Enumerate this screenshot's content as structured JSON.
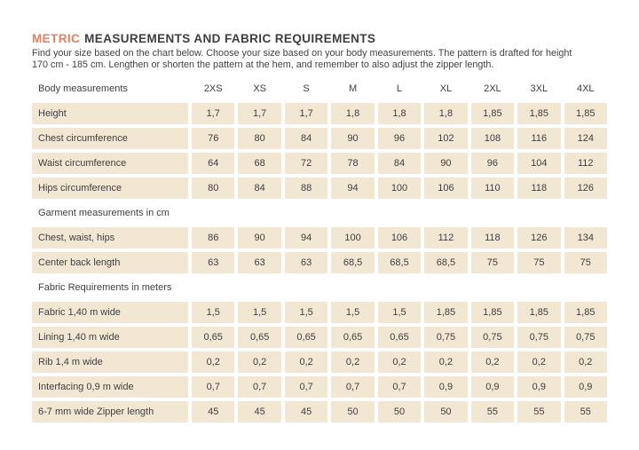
{
  "header": {
    "title_highlight": "METRIC",
    "title_rest": "MEASUREMENTS AND FABRIC REQUIREMENTS",
    "intro_line1": "Find your size based on the chart below. Choose your size based on your body measurements. The pattern is drafted for height",
    "intro_line2": "170 cm - 185 cm.  Lengthen or shorten the pattern at the hem, and remember to also adjust the zipper length."
  },
  "colors": {
    "accent": "#e5805a",
    "row_background": "#f2e7d3",
    "text": "#3c3c3c"
  },
  "table": {
    "header_label": "Body measurements",
    "sizes": [
      "2XS",
      "XS",
      "S",
      "M",
      "L",
      "XL",
      "2XL",
      "3XL",
      "4XL"
    ],
    "sections": [
      {
        "title": "",
        "rows": [
          {
            "label": "Height",
            "values": [
              "1,7",
              "1,7",
              "1,7",
              "1,8",
              "1,8",
              "1,8",
              "1,85",
              "1,85",
              "1,85"
            ]
          },
          {
            "label": "Chest circumference",
            "values": [
              "76",
              "80",
              "84",
              "90",
              "96",
              "102",
              "108",
              "116",
              "124"
            ]
          },
          {
            "label": "Waist circumference",
            "values": [
              "64",
              "68",
              "72",
              "78",
              "84",
              "90",
              "96",
              "104",
              "112"
            ]
          },
          {
            "label": "Hips circumference",
            "values": [
              "80",
              "84",
              "88",
              "94",
              "100",
              "106",
              "110",
              "118",
              "126"
            ]
          }
        ]
      },
      {
        "title": "Garment measurements in cm",
        "rows": [
          {
            "label": "Chest, waist, hips",
            "values": [
              "86",
              "90",
              "94",
              "100",
              "106",
              "112",
              "118",
              "126",
              "134"
            ]
          },
          {
            "label": "Center back length",
            "values": [
              "63",
              "63",
              "63",
              "68,5",
              "68,5",
              "68,5",
              "75",
              "75",
              "75"
            ]
          }
        ]
      },
      {
        "title": "Fabric Requirements in meters",
        "rows": [
          {
            "label": "Fabric 1,40 m wide",
            "values": [
              "1,5",
              "1,5",
              "1,5",
              "1,5",
              "1,5",
              "1,85",
              "1,85",
              "1,85",
              "1,85"
            ]
          },
          {
            "label": "Lining 1,40 m wide",
            "values": [
              "0,65",
              "0,65",
              "0,65",
              "0,65",
              "0,65",
              "0,75",
              "0,75",
              "0,75",
              "0,75"
            ]
          },
          {
            "label": "Rib 1,4 m wide",
            "values": [
              "0,2",
              "0,2",
              "0,2",
              "0,2",
              "0,2",
              "0,2",
              "0,2",
              "0,2",
              "0,2"
            ]
          },
          {
            "label": "Interfacing 0,9 m wide",
            "values": [
              "0,7",
              "0,7",
              "0,7",
              "0,7",
              "0,7",
              "0,9",
              "0,9",
              "0,9",
              "0,9"
            ]
          },
          {
            "label": "6-7 mm wide Zipper length",
            "values": [
              "45",
              "45",
              "45",
              "50",
              "50",
              "50",
              "55",
              "55",
              "55"
            ]
          }
        ]
      }
    ]
  }
}
